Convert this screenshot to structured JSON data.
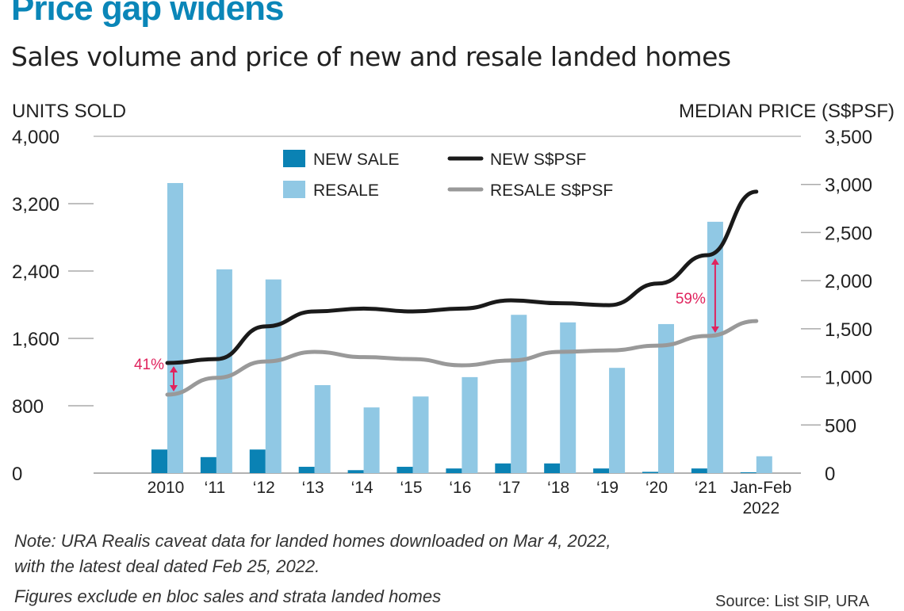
{
  "title": "Price gap widens",
  "subtitle": "Sales volume and price of new and resale landed homes",
  "notes": [
    "Note: URA Realis caveat  data for landed homes downloaded on Mar 4, 2022,",
    "with the latest deal dated Feb 25, 2022.",
    "Figures exclude en bloc sales and strata landed homes"
  ],
  "source": "Source: List SIP, URA",
  "chart_data": {
    "type": "bar+line",
    "title": "Price gap widens",
    "subtitle": "Sales volume and price of new and resale landed homes",
    "ylabel_left": "UNITS SOLD",
    "ylabel_right": "MEDIAN  PRICE (S$PSF)",
    "ylim_left": [
      0,
      4000
    ],
    "ylim_right": [
      0,
      3500
    ],
    "yticks_left": [
      "0",
      "800",
      "1,600",
      "2,400",
      "3,200",
      "4,000"
    ],
    "yticks_right": [
      "0",
      "500",
      "1,000",
      "1,500",
      "2,000",
      "2,500",
      "3,000",
      "3,500"
    ],
    "yticks_left_values": [
      0,
      800,
      1600,
      2400,
      3200,
      4000
    ],
    "yticks_right_values": [
      0,
      500,
      1000,
      1500,
      2000,
      2500,
      3000,
      3500
    ],
    "categories": [
      "2010",
      "‘11",
      "‘12",
      "‘13",
      "‘14",
      "‘15",
      "‘16",
      "‘17",
      "‘18",
      "‘19",
      "‘20",
      "‘21",
      "Jan-Feb 2022"
    ],
    "legend_placement": "top-center",
    "grid": false,
    "bar_series": [
      {
        "name": "NEW SALE",
        "axis": "left",
        "color": "#0a82b4",
        "values": [
          280,
          190,
          280,
          75,
          35,
          75,
          55,
          115,
          115,
          55,
          15,
          55,
          10
        ]
      },
      {
        "name": "RESALE",
        "axis": "left",
        "color": "#90c8e4",
        "values": [
          3445,
          2420,
          2300,
          1045,
          780,
          910,
          1140,
          1880,
          1790,
          1250,
          1770,
          2985,
          200
        ]
      }
    ],
    "line_series": [
      {
        "name": "NEW S$PSF",
        "axis": "right",
        "color": "#1a1a1a",
        "values": [
          1145,
          1185,
          1525,
          1680,
          1710,
          1680,
          1710,
          1795,
          1765,
          1745,
          1970,
          2265,
          2925
        ]
      },
      {
        "name": "RESALE S$PSF",
        "axis": "right",
        "color": "#999999",
        "values": [
          815,
          990,
          1160,
          1260,
          1205,
          1185,
          1120,
          1170,
          1260,
          1275,
          1325,
          1425,
          1580
        ]
      }
    ],
    "annotations": [
      {
        "text": "41%",
        "category": "2010",
        "color": "#e0245e"
      },
      {
        "text": "59%",
        "category": "‘21",
        "color": "#e0245e"
      }
    ]
  }
}
